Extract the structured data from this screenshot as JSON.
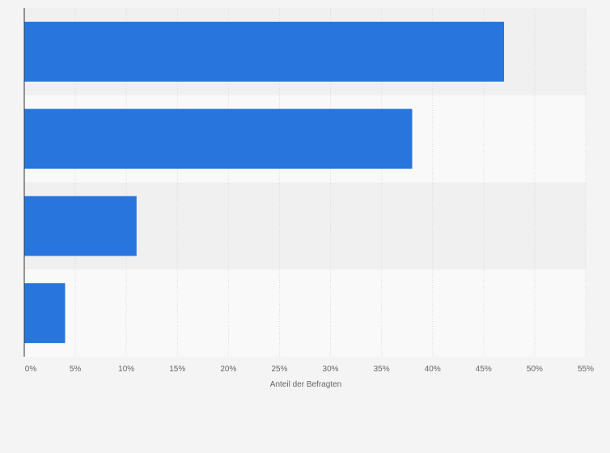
{
  "chart_data": {
    "type": "bar",
    "orientation": "horizontal",
    "categories": [
      "",
      "",
      "",
      ""
    ],
    "values": [
      47,
      38,
      11,
      4
    ],
    "value_unit": "%",
    "xlabel": "Anteil der Befragten",
    "ylabel": "",
    "xlim": [
      0,
      55
    ],
    "x_ticks": [
      0,
      5,
      10,
      15,
      20,
      25,
      30,
      35,
      40,
      45,
      50,
      55
    ],
    "x_tick_labels": [
      "0%",
      "5%",
      "10%",
      "15%",
      "20%",
      "25%",
      "30%",
      "35%",
      "40%",
      "45%",
      "50%",
      "55%"
    ],
    "grid": true,
    "legend": "none"
  },
  "colors": {
    "bar": "#2876dd",
    "band_dark": "#f0f0f0",
    "band_light": "#f9f9f9",
    "grid": "#d9d9d9",
    "axis": "#333333",
    "text": "#666666"
  }
}
